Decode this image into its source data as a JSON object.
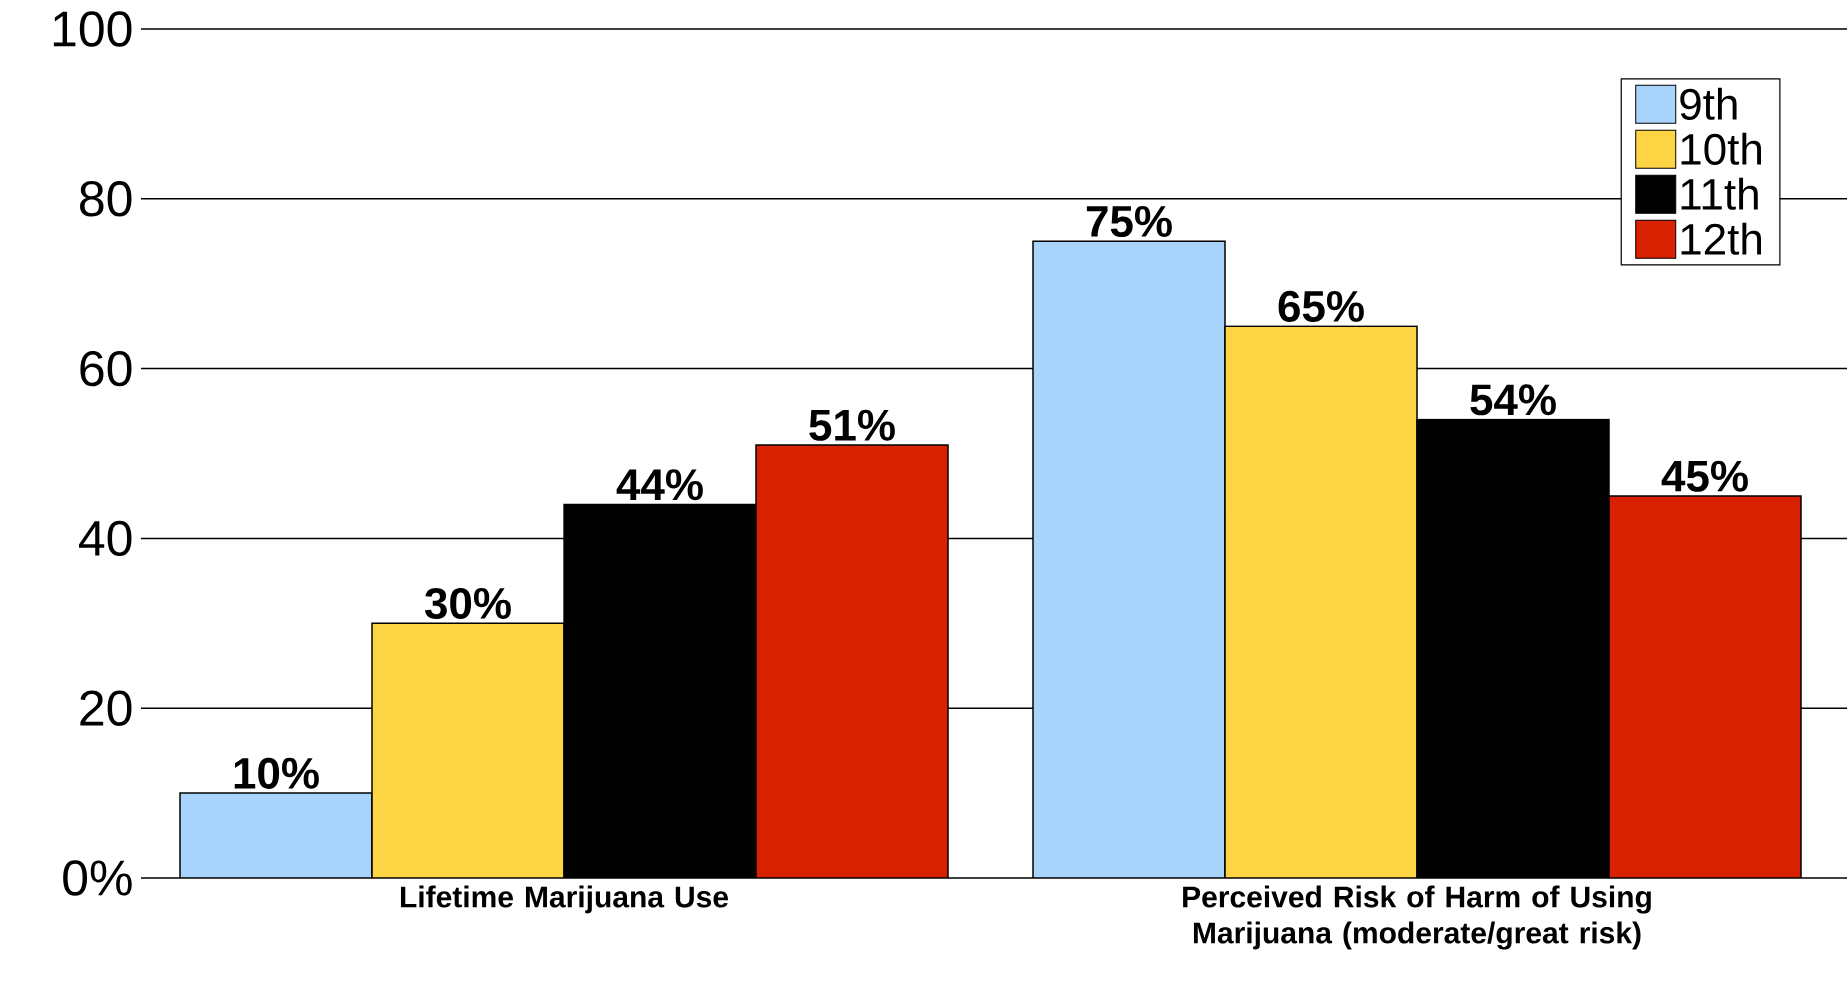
{
  "chart_data": {
    "type": "bar",
    "categories": [
      "Lifetime Marijuana Use",
      "Perceived Risk of Harm of Using Marijuana (moderate/great risk)"
    ],
    "series": [
      {
        "name": "9th",
        "color": "#a8d4fc",
        "values": [
          10,
          75
        ],
        "value_labels": [
          "10%",
          "75%"
        ]
      },
      {
        "name": "10th",
        "color": "#fdd443",
        "values": [
          30,
          65
        ],
        "value_labels": [
          "30%",
          "65%"
        ]
      },
      {
        "name": "11th",
        "color": "#000000",
        "values": [
          44,
          54
        ],
        "value_labels": [
          "44%",
          "54%"
        ]
      },
      {
        "name": "12th",
        "color": "#d72100",
        "values": [
          51,
          45
        ],
        "value_labels": [
          "51%",
          "45%"
        ]
      }
    ],
    "ylim": [
      0,
      100
    ],
    "yticks": [
      {
        "value": 0,
        "label": "0%"
      },
      20,
      40,
      60,
      80,
      100
    ],
    "grid": "y",
    "legend": "top right"
  }
}
